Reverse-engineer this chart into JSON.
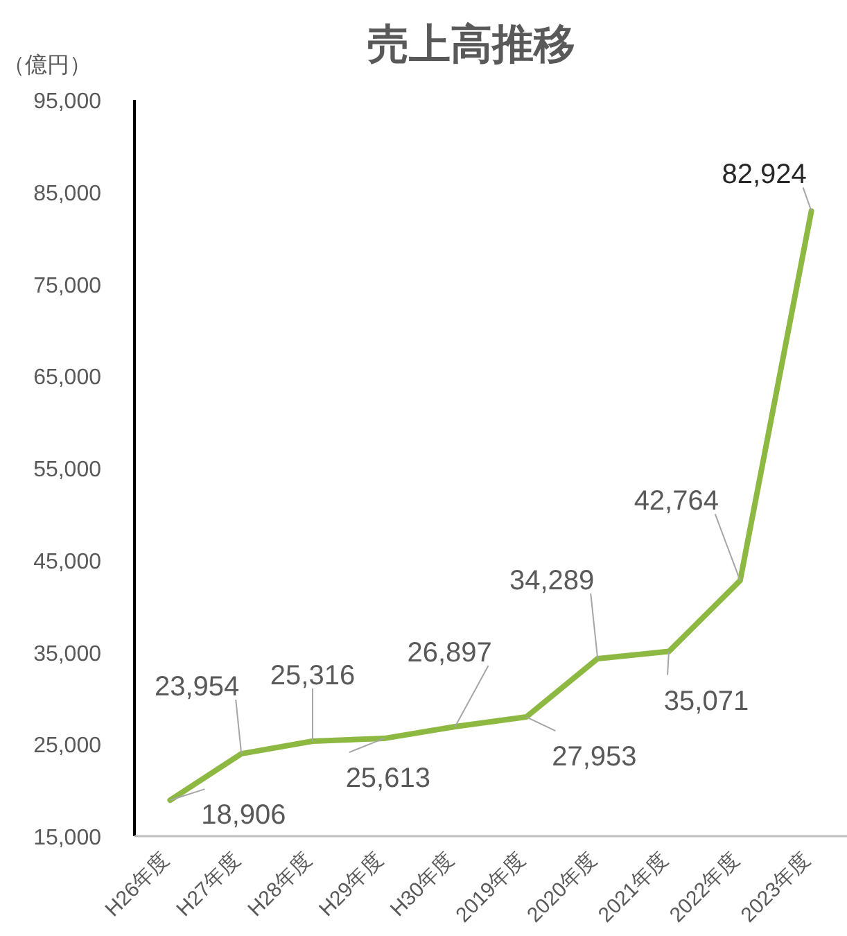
{
  "chart_data": {
    "type": "line",
    "title": "売上高推移",
    "ylabel": "（億円）",
    "categories": [
      "H26年度",
      "H27年度",
      "H28年度",
      "H29年度",
      "H30年度",
      "2019年度",
      "2020年度",
      "2021年度",
      "2022年度",
      "2023年度"
    ],
    "series": [
      {
        "color": "#8db943",
        "values": [
          18906,
          23954,
          25316,
          25613,
          26897,
          27953,
          34289,
          35071,
          42764,
          82924
        ],
        "value_labels": [
          "18,906",
          "23,954",
          "25,316",
          "25,613",
          "26,897",
          "27,953",
          "34,289",
          "35,071",
          "42,764",
          "82,924"
        ]
      }
    ],
    "ylim": [
      15000,
      95000
    ],
    "yticks": [
      {
        "value": 15000,
        "label": "15,000"
      },
      {
        "value": 25000,
        "label": "25,000"
      },
      {
        "value": 35000,
        "label": "35,000"
      },
      {
        "value": 45000,
        "label": "45,000"
      },
      {
        "value": 55000,
        "label": "55,000"
      },
      {
        "value": 65000,
        "label": "65,000"
      },
      {
        "value": 75000,
        "label": "75,000"
      },
      {
        "value": 85000,
        "label": "85,000"
      },
      {
        "value": 95000,
        "label": "95,000"
      }
    ],
    "grid": false,
    "marker": "none",
    "line_style": "solid"
  }
}
